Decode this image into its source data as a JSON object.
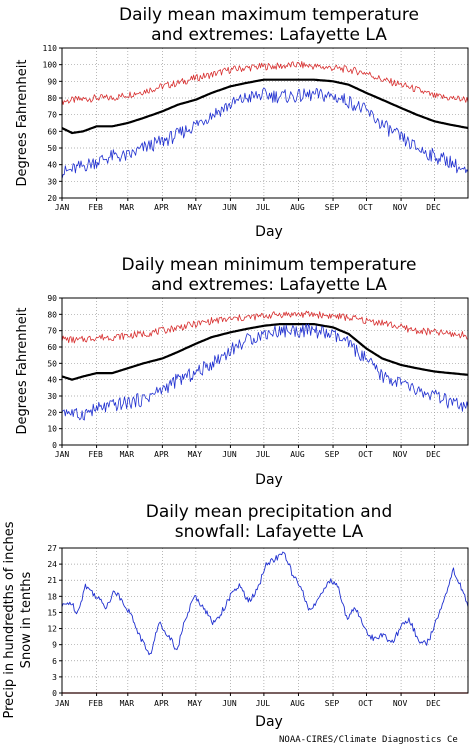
{
  "credit": "NOAA-CIRES/Climate Diagnostics Ce",
  "colors": {
    "mean": "#000000",
    "record_high": "#d83030",
    "record_low": "#2030d0",
    "precip": "#2030d0",
    "snow": "#cc0000"
  },
  "chart_data": [
    {
      "type": "line",
      "title": [
        "Daily mean maximum temperature",
        "and extremes: Lafayette LA"
      ],
      "xlabel": "Day",
      "ylabel": "Degrees Fahrenheit",
      "x_ticks": [
        "JAN",
        "FEB",
        "MAR",
        "APR",
        "MAY",
        "JUN",
        "JUL",
        "AUG",
        "SEP",
        "OCT",
        "NOV",
        "DEC"
      ],
      "x_domain": [
        1,
        365
      ],
      "ylim": [
        20,
        110
      ],
      "y_ticks": [
        20,
        30,
        40,
        50,
        60,
        70,
        80,
        90,
        100,
        110
      ],
      "grid": true,
      "series": [
        {
          "role": "record_high",
          "x": [
            1,
            15,
            32,
            46,
            60,
            74,
            91,
            105,
            121,
            135,
            152,
            166,
            182,
            196,
            213,
            227,
            244,
            258,
            274,
            288,
            305,
            319,
            335,
            349,
            365
          ],
          "values": [
            78,
            79,
            80,
            80,
            82,
            84,
            87,
            89,
            92,
            94,
            97,
            98,
            99,
            99,
            100,
            99,
            98,
            97,
            95,
            91,
            88,
            85,
            81,
            80,
            79
          ]
        },
        {
          "role": "mean",
          "x": [
            1,
            10,
            20,
            32,
            46,
            60,
            74,
            91,
            105,
            121,
            135,
            152,
            166,
            182,
            196,
            213,
            227,
            244,
            258,
            274,
            288,
            305,
            319,
            335,
            349,
            365
          ],
          "values": [
            62,
            59,
            60,
            63,
            63,
            65,
            68,
            72,
            76,
            79,
            83,
            87,
            89,
            91,
            91,
            91,
            91,
            90,
            88,
            83,
            79,
            74,
            70,
            66,
            64,
            62
          ]
        },
        {
          "role": "record_low",
          "x": [
            1,
            15,
            32,
            46,
            60,
            74,
            91,
            105,
            121,
            135,
            152,
            166,
            182,
            196,
            213,
            227,
            244,
            258,
            274,
            288,
            305,
            319,
            335,
            349,
            365
          ],
          "values": [
            35,
            38,
            42,
            45,
            45,
            50,
            54,
            58,
            64,
            70,
            76,
            80,
            82,
            81,
            81,
            82,
            81,
            78,
            72,
            64,
            56,
            50,
            45,
            42,
            34
          ]
        }
      ]
    },
    {
      "type": "line",
      "title": [
        "Daily mean minimum temperature",
        "and extremes: Lafayette LA"
      ],
      "xlabel": "Day",
      "ylabel": "Degrees Fahrenheit",
      "x_ticks": [
        "JAN",
        "FEB",
        "MAR",
        "APR",
        "MAY",
        "JUN",
        "JUL",
        "AUG",
        "SEP",
        "OCT",
        "NOV",
        "DEC"
      ],
      "x_domain": [
        1,
        365
      ],
      "ylim": [
        0,
        90
      ],
      "y_ticks": [
        0,
        10,
        20,
        30,
        40,
        50,
        60,
        70,
        80,
        90
      ],
      "grid": true,
      "series": [
        {
          "role": "record_high",
          "x": [
            1,
            15,
            32,
            46,
            60,
            74,
            91,
            105,
            121,
            135,
            152,
            166,
            182,
            196,
            213,
            227,
            244,
            258,
            274,
            288,
            305,
            319,
            335,
            349,
            365
          ],
          "values": [
            65,
            64,
            66,
            66,
            67,
            68,
            70,
            72,
            74,
            76,
            77,
            78,
            79,
            80,
            80,
            80,
            79,
            78,
            76,
            75,
            72,
            70,
            69,
            68,
            67
          ]
        },
        {
          "role": "mean",
          "x": [
            1,
            10,
            20,
            32,
            46,
            60,
            74,
            91,
            105,
            121,
            135,
            152,
            166,
            182,
            196,
            213,
            227,
            244,
            258,
            274,
            288,
            305,
            319,
            335,
            349,
            365
          ],
          "values": [
            42,
            40,
            42,
            44,
            44,
            47,
            50,
            53,
            57,
            62,
            66,
            69,
            71,
            73,
            74,
            74,
            74,
            72,
            68,
            59,
            53,
            49,
            47,
            45,
            44,
            43
          ]
        },
        {
          "role": "record_low",
          "x": [
            1,
            15,
            32,
            46,
            60,
            74,
            91,
            105,
            121,
            135,
            152,
            166,
            182,
            196,
            213,
            227,
            244,
            258,
            274,
            288,
            305,
            319,
            335,
            349,
            365
          ],
          "values": [
            22,
            18,
            22,
            24,
            26,
            28,
            34,
            40,
            44,
            50,
            58,
            64,
            68,
            70,
            70,
            70,
            67,
            62,
            52,
            42,
            38,
            33,
            30,
            26,
            22
          ]
        }
      ]
    },
    {
      "type": "line",
      "title": [
        "Daily mean precipitation and",
        "snowfall: Lafayette LA"
      ],
      "xlabel": "Day",
      "ylabel": [
        "Precip in hundredths of inches",
        "Snow in tenths"
      ],
      "x_ticks": [
        "JAN",
        "FEB",
        "MAR",
        "APR",
        "MAY",
        "JUN",
        "JUL",
        "AUG",
        "SEP",
        "OCT",
        "NOV",
        "DEC"
      ],
      "x_domain": [
        1,
        365
      ],
      "ylim": [
        0,
        27
      ],
      "y_ticks": [
        0,
        3,
        6,
        9,
        12,
        15,
        18,
        21,
        24,
        27
      ],
      "grid": true,
      "series": [
        {
          "role": "precip",
          "x": [
            1,
            8,
            15,
            22,
            32,
            40,
            48,
            56,
            64,
            72,
            80,
            88,
            96,
            104,
            112,
            120,
            128,
            136,
            144,
            152,
            160,
            168,
            176,
            184,
            192,
            200,
            208,
            216,
            224,
            232,
            240,
            248,
            256,
            264,
            272,
            280,
            288,
            296,
            304,
            312,
            320,
            328,
            336,
            344,
            352,
            360,
            365
          ],
          "values": [
            16,
            17,
            15,
            20,
            18,
            16,
            19,
            17,
            14,
            10,
            7,
            13,
            11,
            8,
            14,
            18,
            16,
            13,
            15,
            18,
            20,
            17,
            19,
            24,
            25,
            26,
            22,
            19,
            15,
            18,
            21,
            20,
            14,
            16,
            12,
            10,
            11,
            9,
            12,
            14,
            10,
            9,
            13,
            18,
            23,
            19,
            16
          ]
        },
        {
          "role": "snow",
          "x": [
            1,
            365
          ],
          "values": [
            0,
            0
          ]
        }
      ]
    }
  ]
}
